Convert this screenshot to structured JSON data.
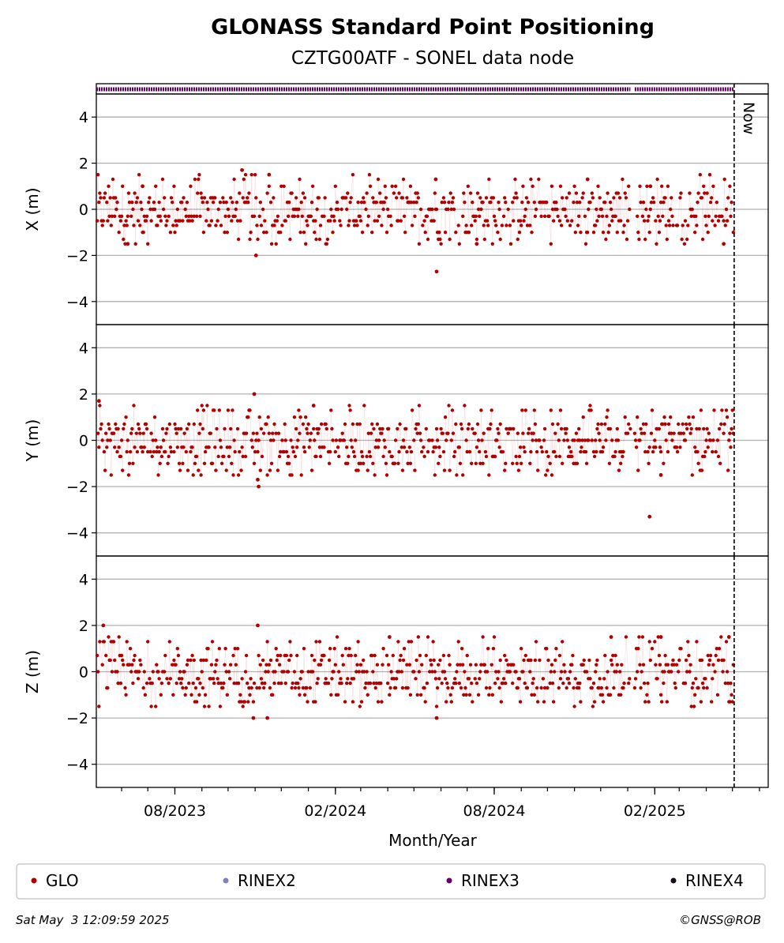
{
  "chart_data": {
    "type": "scatter",
    "title": "GLONASS Standard Point Positioning",
    "subtitle": "CZTG00ATF - SONEL data node",
    "xlabel": "Month/Year",
    "x_range": [
      "2023-05-03",
      "2025-06-11"
    ],
    "x_tick_labels": [
      {
        "date": "2023-08-01",
        "label": "08/2023"
      },
      {
        "date": "2024-02-01",
        "label": "02/2024"
      },
      {
        "date": "2024-08-01",
        "label": "08/2024"
      },
      {
        "date": "2025-02-01",
        "label": "02/2025"
      }
    ],
    "now_marker": {
      "date": "2025-05-03",
      "label": "Now"
    },
    "rinex_strip": {
      "series": "RINEX3",
      "intervals": [
        [
          "2023-05-03",
          "2025-01-04"
        ],
        [
          "2025-01-09",
          "2025-05-03"
        ]
      ]
    },
    "panels": [
      {
        "ylabel": "X (m)",
        "ylim": [
          -5,
          5
        ],
        "yticks": [
          4,
          2,
          0,
          -2,
          -4
        ],
        "ytick_labels": [
          "4",
          "2",
          "0",
          "−2",
          "−4"
        ],
        "outliers": [
          {
            "date": "2023-06-08",
            "value": -1.5
          },
          {
            "date": "2023-06-25",
            "value": 1.0
          },
          {
            "date": "2023-10-17",
            "value": 1.7
          },
          {
            "date": "2023-11-02",
            "value": -2.0
          },
          {
            "date": "2023-11-17",
            "value": 1.5
          },
          {
            "date": "2024-05-27",
            "value": -2.7
          },
          {
            "date": "2024-05-26",
            "value": 1.3
          },
          {
            "date": "2024-07-12",
            "value": -1.5
          },
          {
            "date": "2024-11-16",
            "value": 1.3
          },
          {
            "date": "2025-01-27",
            "value": 1.0
          },
          {
            "date": "2025-04-21",
            "value": -1.5
          }
        ]
      },
      {
        "ylabel": "Y (m)",
        "ylim": [
          -5,
          5
        ],
        "yticks": [
          4,
          2,
          0,
          -2,
          -4
        ],
        "ytick_labels": [
          "4",
          "2",
          "0",
          "−2",
          "−4"
        ],
        "outliers": [
          {
            "date": "2023-05-06",
            "value": 1.7
          },
          {
            "date": "2023-10-31",
            "value": 2.0
          },
          {
            "date": "2023-11-04",
            "value": -1.7
          },
          {
            "date": "2023-11-05",
            "value": -2.0
          },
          {
            "date": "2024-01-07",
            "value": 1.5
          },
          {
            "date": "2025-01-26",
            "value": -3.3
          },
          {
            "date": "2025-02-08",
            "value": -1.5
          }
        ]
      },
      {
        "ylabel": "Z (m)",
        "ylim": [
          -5,
          5
        ],
        "yticks": [
          4,
          2,
          0,
          -2,
          -4
        ],
        "ytick_labels": [
          "4",
          "2",
          "0",
          "−2",
          "−4"
        ],
        "outliers": [
          {
            "date": "2023-05-11",
            "value": 2.0
          },
          {
            "date": "2023-10-30",
            "value": -2.0
          },
          {
            "date": "2023-11-04",
            "value": 2.0
          },
          {
            "date": "2023-11-15",
            "value": -2.0
          },
          {
            "date": "2024-05-27",
            "value": -2.0
          },
          {
            "date": "2024-04-03",
            "value": 1.5
          },
          {
            "date": "2024-12-13",
            "value": 1.5
          },
          {
            "date": "2025-02-08",
            "value": 1.5
          },
          {
            "date": "2025-04-27",
            "value": 1.5
          }
        ]
      }
    ],
    "series_color": "#b00000",
    "legend": {
      "placement": "bottom",
      "entries": [
        {
          "label": "GLO",
          "color": "#b00000"
        },
        {
          "label": "RINEX2",
          "color": "#8080c0"
        },
        {
          "label": "RINEX3",
          "color": "#660066"
        },
        {
          "label": "RINEX4",
          "color": "#1a0a1a"
        }
      ]
    },
    "grid": true
  },
  "footer": {
    "timestamp": "Sat May  3 12:09:59 2025",
    "credit": "©GNSS@ROB"
  }
}
